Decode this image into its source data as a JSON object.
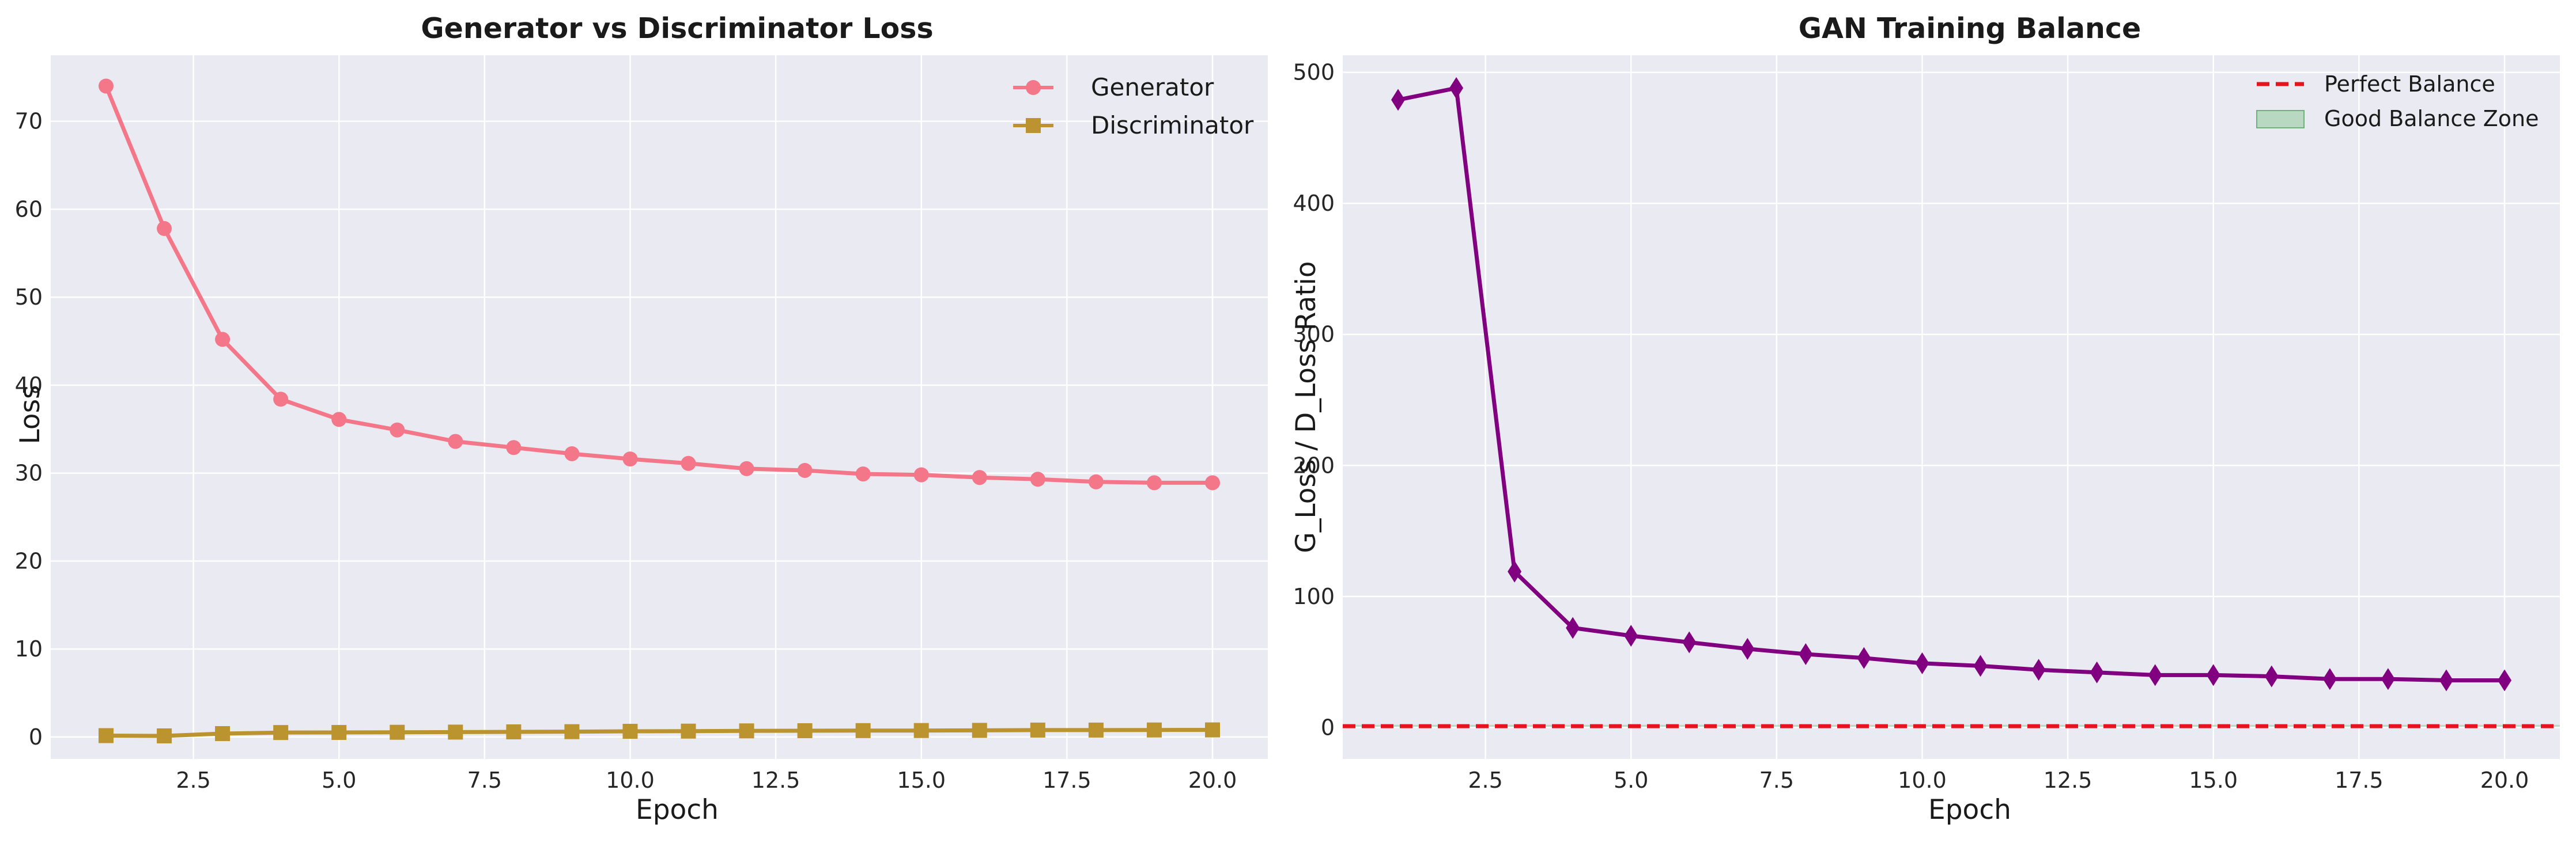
{
  "chart_data": [
    {
      "type": "line",
      "title": "Generator vs Discriminator Loss",
      "xlabel": "Epoch",
      "ylabel": "Loss",
      "xlim": [
        0.05,
        20.95
      ],
      "ylim": [
        -2.5,
        77.5
      ],
      "xticks": [
        2.5,
        5.0,
        7.5,
        10.0,
        12.5,
        15.0,
        17.5,
        20.0
      ],
      "xtick_labels": [
        "2.5",
        "5.0",
        "7.5",
        "10.0",
        "12.5",
        "15.0",
        "17.5",
        "20.0"
      ],
      "yticks": [
        0,
        10,
        20,
        30,
        40,
        50,
        60,
        70
      ],
      "ytick_labels": [
        "0",
        "10",
        "20",
        "30",
        "40",
        "50",
        "60",
        "70"
      ],
      "grid": true,
      "legend_position": "top-right",
      "x": [
        1,
        2,
        3,
        4,
        5,
        6,
        7,
        8,
        9,
        10,
        11,
        12,
        13,
        14,
        15,
        16,
        17,
        18,
        19,
        20
      ],
      "series": [
        {
          "name": "Generator",
          "color": "#f37689",
          "marker": "circle",
          "values": [
            74.0,
            57.8,
            45.2,
            38.4,
            36.1,
            34.9,
            33.6,
            32.9,
            32.2,
            31.6,
            31.1,
            30.5,
            30.3,
            29.9,
            29.8,
            29.5,
            29.3,
            29.0,
            28.9,
            28.9
          ]
        },
        {
          "name": "Discriminator",
          "color": "#bb9430",
          "marker": "square",
          "values": [
            0.15,
            0.12,
            0.38,
            0.5,
            0.51,
            0.53,
            0.55,
            0.58,
            0.6,
            0.64,
            0.66,
            0.69,
            0.71,
            0.72,
            0.73,
            0.75,
            0.78,
            0.78,
            0.79,
            0.8
          ]
        }
      ]
    },
    {
      "type": "line",
      "title": "GAN Training Balance",
      "xlabel": "Epoch",
      "ylabel": "G_Loss / D_Loss Ratio",
      "xlim": [
        0.05,
        20.95
      ],
      "ylim": [
        -24,
        513
      ],
      "xticks": [
        2.5,
        5.0,
        7.5,
        10.0,
        12.5,
        15.0,
        17.5,
        20.0
      ],
      "xtick_labels": [
        "2.5",
        "5.0",
        "7.5",
        "10.0",
        "12.5",
        "15.0",
        "17.5",
        "20.0"
      ],
      "yticks": [
        0,
        100,
        200,
        300,
        400,
        500
      ],
      "ytick_labels": [
        "0",
        "100",
        "200",
        "300",
        "400",
        "500"
      ],
      "grid": true,
      "legend_position": "top-right",
      "x": [
        1,
        2,
        3,
        4,
        5,
        6,
        7,
        8,
        9,
        10,
        11,
        12,
        13,
        14,
        15,
        16,
        17,
        18,
        19,
        20
      ],
      "series": [
        {
          "name": "",
          "color": "#800080",
          "marker": "diamond",
          "values": [
            479,
            488,
            119,
            76,
            70,
            65,
            60,
            56,
            53,
            49,
            47,
            44,
            42,
            40,
            40,
            39,
            37,
            37,
            36,
            36
          ]
        }
      ],
      "reference_line": {
        "name": "Perfect Balance",
        "y": 1.0,
        "color": "#e8141d",
        "style": "dashed"
      },
      "band": {
        "name": "Good Balance Zone",
        "y_range": [
          0.5,
          2.0
        ],
        "color": "#8fc89a"
      }
    }
  ]
}
